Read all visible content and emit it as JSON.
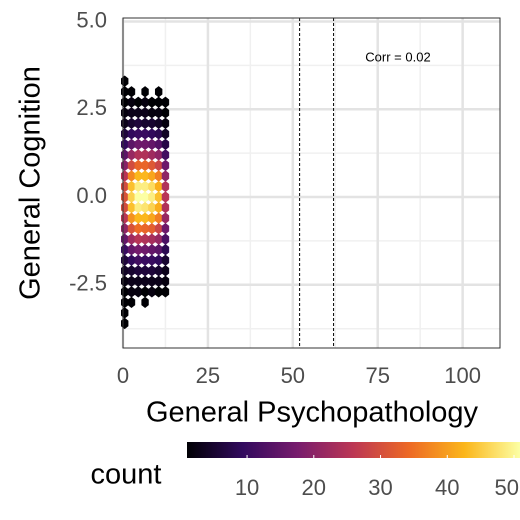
{
  "chart_data": {
    "type": "hexbin",
    "x_label": "General Psychopathology",
    "y_label": "General Cognition",
    "annotation": "Corr = 0.02",
    "vlines": [
      52,
      62
    ],
    "x": [
      0.5,
      2.5,
      4.5,
      6.5,
      8.5,
      10.5,
      12.5
    ],
    "y": [
      3.3,
      3.0,
      2.7,
      2.4,
      2.1,
      1.8,
      1.5,
      1.2,
      0.9,
      0.6,
      0.3,
      0,
      -0.3,
      -0.6,
      -0.9,
      -1.2,
      -1.5,
      -1.8,
      -2.1,
      -2.4,
      -2.7,
      -3.0,
      -3.3,
      -3.6
    ],
    "values": [
      [
        1,
        null,
        null,
        null,
        null,
        null,
        null
      ],
      [
        1,
        1,
        null,
        1,
        null,
        1,
        null
      ],
      [
        1,
        2,
        1,
        2,
        1,
        1,
        1
      ],
      [
        2,
        3,
        3,
        3,
        2,
        2,
        1
      ],
      [
        3,
        5,
        6,
        5,
        5,
        4,
        2
      ],
      [
        6,
        9,
        10,
        10,
        9,
        8,
        4
      ],
      [
        9,
        14,
        16,
        16,
        15,
        13,
        7
      ],
      [
        14,
        21,
        24,
        24,
        22,
        20,
        11
      ],
      [
        19,
        29,
        33,
        33,
        31,
        28,
        16
      ],
      [
        25,
        37,
        42,
        42,
        40,
        36,
        20
      ],
      [
        29,
        43,
        48,
        48,
        46,
        41,
        24
      ],
      [
        30,
        45,
        50,
        50,
        48,
        43,
        25
      ],
      [
        29,
        43,
        48,
        47,
        45,
        41,
        24
      ],
      [
        25,
        38,
        42,
        42,
        40,
        36,
        21
      ],
      [
        20,
        30,
        34,
        33,
        32,
        28,
        16
      ],
      [
        15,
        22,
        25,
        24,
        23,
        21,
        12
      ],
      [
        10,
        15,
        17,
        16,
        15,
        14,
        8
      ],
      [
        6,
        9,
        11,
        10,
        10,
        9,
        5
      ],
      [
        4,
        5,
        6,
        6,
        6,
        5,
        3
      ],
      [
        2,
        3,
        3,
        3,
        3,
        3,
        2
      ],
      [
        1,
        2,
        2,
        1,
        2,
        1,
        1
      ],
      [
        1,
        1,
        null,
        1,
        null,
        null,
        null
      ],
      [
        1,
        null,
        null,
        null,
        null,
        null,
        null
      ],
      [
        1,
        null,
        null,
        null,
        null,
        null,
        null
      ]
    ],
    "xlim": [
      0,
      111
    ],
    "xticks": [
      0,
      25,
      50,
      75,
      100
    ],
    "ylim": [
      -4.3,
      5.1
    ],
    "yticks": [
      {
        "value": 5,
        "label": "5.0"
      },
      2.5,
      {
        "value": 0,
        "label": "0.0"
      },
      -2.5
    ],
    "grid": true,
    "colormap": [
      "#000004",
      "#320a5e",
      "#781c6d",
      "#bc3754",
      "#ed6925",
      "#fbb61a",
      "#fcffa4"
    ],
    "legend_title": "count",
    "clim": [
      1,
      50
    ],
    "cticks": [
      10,
      20,
      30,
      40,
      50
    ]
  }
}
